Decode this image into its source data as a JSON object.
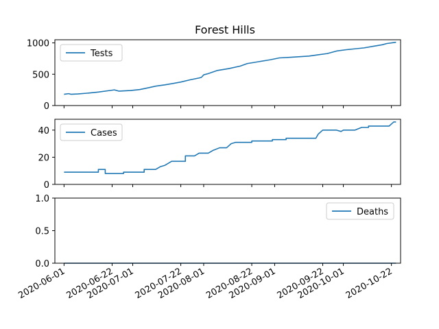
{
  "chart_data": {
    "type": "line",
    "title": "Forest Hills",
    "color": "#1f77b4",
    "x_range": [
      "2020-05-28",
      "2020-10-26"
    ],
    "x_ticks": [
      "2020-06-01",
      "2020-06-22",
      "2020-07-01",
      "2020-07-22",
      "2020-08-01",
      "2020-08-22",
      "2020-09-01",
      "2020-09-22",
      "2020-10-01",
      "2020-10-22"
    ],
    "panels": [
      {
        "series_name": "Tests",
        "legend_position": "top-left",
        "ylim": [
          0,
          1050
        ],
        "yticks": [
          0,
          500,
          1000
        ],
        "ytick_labels": [
          "0",
          "500",
          "1000"
        ],
        "points": [
          [
            "2020-06-01",
            180
          ],
          [
            "2020-06-03",
            190
          ],
          [
            "2020-06-04",
            180
          ],
          [
            "2020-06-07",
            185
          ],
          [
            "2020-06-12",
            200
          ],
          [
            "2020-06-16",
            215
          ],
          [
            "2020-06-20",
            235
          ],
          [
            "2020-06-23",
            250
          ],
          [
            "2020-06-25",
            230
          ],
          [
            "2020-06-30",
            240
          ],
          [
            "2020-07-04",
            255
          ],
          [
            "2020-07-08",
            285
          ],
          [
            "2020-07-11",
            310
          ],
          [
            "2020-07-15",
            330
          ],
          [
            "2020-07-19",
            355
          ],
          [
            "2020-07-22",
            375
          ],
          [
            "2020-07-26",
            410
          ],
          [
            "2020-07-30",
            440
          ],
          [
            "2020-07-31",
            450
          ],
          [
            "2020-08-01",
            490
          ],
          [
            "2020-08-03",
            510
          ],
          [
            "2020-08-07",
            560
          ],
          [
            "2020-08-12",
            590
          ],
          [
            "2020-08-17",
            630
          ],
          [
            "2020-08-20",
            670
          ],
          [
            "2020-08-25",
            700
          ],
          [
            "2020-08-30",
            730
          ],
          [
            "2020-09-03",
            760
          ],
          [
            "2020-09-08",
            770
          ],
          [
            "2020-09-12",
            780
          ],
          [
            "2020-09-16",
            790
          ],
          [
            "2020-09-20",
            810
          ],
          [
            "2020-09-24",
            830
          ],
          [
            "2020-09-28",
            870
          ],
          [
            "2020-10-02",
            890
          ],
          [
            "2020-10-06",
            905
          ],
          [
            "2020-10-10",
            920
          ],
          [
            "2020-10-14",
            945
          ],
          [
            "2020-10-18",
            970
          ],
          [
            "2020-10-20",
            990
          ],
          [
            "2020-10-24",
            1010
          ]
        ]
      },
      {
        "series_name": "Cases",
        "legend_position": "top-left",
        "ylim": [
          0,
          48
        ],
        "yticks": [
          0,
          20,
          40
        ],
        "ytick_labels": [
          "0",
          "20",
          "40"
        ],
        "points": [
          [
            "2020-06-01",
            9
          ],
          [
            "2020-06-16",
            9
          ],
          [
            "2020-06-16",
            11
          ],
          [
            "2020-06-19",
            11
          ],
          [
            "2020-06-19",
            8
          ],
          [
            "2020-06-27",
            8
          ],
          [
            "2020-06-27",
            9
          ],
          [
            "2020-07-06",
            9
          ],
          [
            "2020-07-06",
            11
          ],
          [
            "2020-07-11",
            11
          ],
          [
            "2020-07-13",
            13
          ],
          [
            "2020-07-15",
            14
          ],
          [
            "2020-07-18",
            17
          ],
          [
            "2020-07-24",
            17
          ],
          [
            "2020-07-24",
            21
          ],
          [
            "2020-07-28",
            21
          ],
          [
            "2020-07-30",
            23
          ],
          [
            "2020-08-03",
            23
          ],
          [
            "2020-08-05",
            25
          ],
          [
            "2020-08-08",
            27
          ],
          [
            "2020-08-11",
            27
          ],
          [
            "2020-08-13",
            30
          ],
          [
            "2020-08-15",
            31
          ],
          [
            "2020-08-22",
            31
          ],
          [
            "2020-08-22",
            32
          ],
          [
            "2020-08-31",
            32
          ],
          [
            "2020-08-31",
            33
          ],
          [
            "2020-09-06",
            33
          ],
          [
            "2020-09-06",
            34
          ],
          [
            "2020-09-19",
            34
          ],
          [
            "2020-09-20",
            37
          ],
          [
            "2020-09-22",
            40
          ],
          [
            "2020-09-28",
            40
          ],
          [
            "2020-09-30",
            39
          ],
          [
            "2020-10-01",
            40
          ],
          [
            "2020-10-06",
            40
          ],
          [
            "2020-10-09",
            42
          ],
          [
            "2020-10-12",
            42
          ],
          [
            "2020-10-12",
            43
          ],
          [
            "2020-10-21",
            43
          ],
          [
            "2020-10-23",
            46
          ],
          [
            "2020-10-24",
            46
          ]
        ]
      },
      {
        "series_name": "Deaths",
        "legend_position": "top-right",
        "ylim": [
          0,
          1
        ],
        "yticks": [
          0,
          0.5,
          1
        ],
        "ytick_labels": [
          "0.0",
          "0.5",
          "1.0"
        ],
        "points": [
          [
            "2020-06-01",
            0
          ],
          [
            "2020-10-24",
            0
          ]
        ]
      }
    ]
  }
}
